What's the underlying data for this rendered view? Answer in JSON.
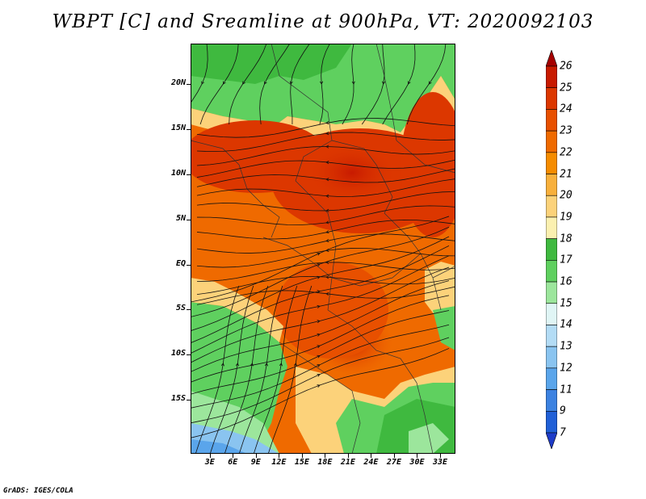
{
  "title": "WBPT [C] and Sreamline at 900hPa, VT: 2020092103",
  "credit": "GrADS: IGES/COLA",
  "map": {
    "lat_range": [
      -21,
      24.5
    ],
    "lon_range": [
      0.5,
      35
    ],
    "y_ticks": [
      {
        "label": "20N",
        "lat": 20
      },
      {
        "label": "15N",
        "lat": 15
      },
      {
        "label": "10N",
        "lat": 10
      },
      {
        "label": "5N",
        "lat": 5
      },
      {
        "label": "EQ",
        "lat": 0
      },
      {
        "label": "5S",
        "lat": -5
      },
      {
        "label": "10S",
        "lat": -10
      },
      {
        "label": "15S",
        "lat": -15
      }
    ],
    "x_ticks": [
      {
        "label": "3E",
        "lon": 3
      },
      {
        "label": "6E",
        "lon": 6
      },
      {
        "label": "9E",
        "lon": 9
      },
      {
        "label": "12E",
        "lon": 12
      },
      {
        "label": "15E",
        "lon": 15
      },
      {
        "label": "18E",
        "lon": 18
      },
      {
        "label": "21E",
        "lon": 21
      },
      {
        "label": "24E",
        "lon": 24
      },
      {
        "label": "27E",
        "lon": 27
      },
      {
        "label": "30E",
        "lon": 30
      },
      {
        "label": "33E",
        "lon": 33
      }
    ]
  },
  "colorbar": {
    "levels": [
      "26",
      "25",
      "24",
      "23",
      "22",
      "21",
      "20",
      "19",
      "18",
      "17",
      "16",
      "15",
      "14",
      "13",
      "12",
      "11",
      "9",
      "7"
    ],
    "colors": [
      "#a50000",
      "#c81a00",
      "#dc3700",
      "#e85000",
      "#ef6a00",
      "#f58c00",
      "#f8b03c",
      "#fcd27a",
      "#fbf0b0",
      "#3fb93f",
      "#5fd05f",
      "#9ce69c",
      "#e0f5f5",
      "#b3dcf5",
      "#8ac4f0",
      "#5aa5eb",
      "#3c82e1",
      "#2060d7",
      "#1e3cc8"
    ]
  }
}
